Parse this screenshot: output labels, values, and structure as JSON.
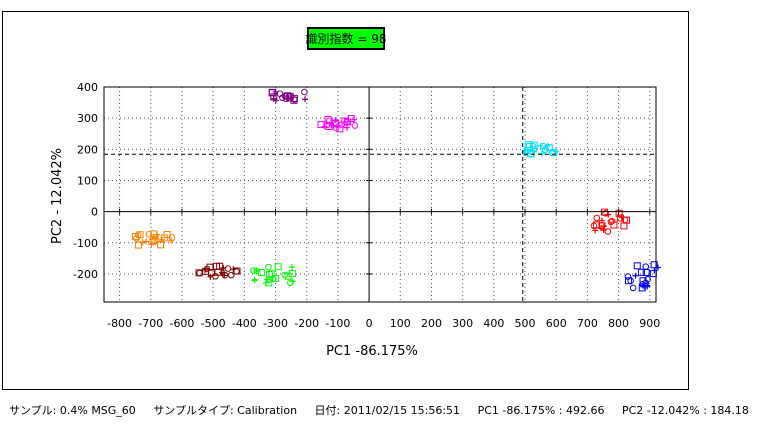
{
  "badge": {
    "text": "識別指数 = 98",
    "color": "#00ff00"
  },
  "footer": {
    "sample": "サンプル: 0.4% MSG_60",
    "sample_type": "サンプルタイプ: Calibration",
    "date": "日付: 2011/02/15 15:56:51",
    "pc1": "PC1 -86.175% : 492.66",
    "pc2": "PC2 -12.042% : 184.18"
  },
  "chart_data": {
    "type": "scatter",
    "xlabel": "PC1 -86.175%",
    "ylabel": "PC2 - 12.042%",
    "xlim": [
      -850,
      920
    ],
    "ylim": [
      -290,
      400
    ],
    "x_ticks": [
      -800,
      -700,
      -600,
      -500,
      -400,
      -300,
      -200,
      -100,
      0,
      100,
      200,
      300,
      400,
      500,
      600,
      700,
      800,
      900
    ],
    "y_ticks": [
      -200,
      -100,
      0,
      100,
      200,
      300,
      400
    ],
    "x_tick_labels": [
      "-800",
      "-700",
      "-600",
      "-500",
      "-400",
      "-300",
      "-200",
      "-100",
      "0",
      "100",
      "200",
      "300",
      "400",
      "500",
      "600",
      "700",
      "800",
      "900"
    ],
    "y_tick_labels": [
      "-200",
      "-100",
      "0",
      "100",
      "200",
      "300",
      "400"
    ],
    "grid": "dotted",
    "crosshair": {
      "x": 492.66,
      "y": 184.18
    },
    "clusters": [
      {
        "color": "#800080",
        "x_range": [
          -320,
          -200
        ],
        "y_range": [
          355,
          385
        ]
      },
      {
        "color": "#ff00ff",
        "x_range": [
          -160,
          -40
        ],
        "y_range": [
          265,
          300
        ]
      },
      {
        "color": "#00e0ff",
        "x_range": [
          500,
          610
        ],
        "y_range": [
          185,
          215
        ]
      },
      {
        "color": "#ff8000",
        "x_range": [
          -750,
          -620
        ],
        "y_range": [
          -110,
          -70
        ]
      },
      {
        "color": "#800000",
        "x_range": [
          -550,
          -420
        ],
        "y_range": [
          -210,
          -175
        ]
      },
      {
        "color": "#00ff00",
        "x_range": [
          -380,
          -230
        ],
        "y_range": [
          -230,
          -175
        ]
      },
      {
        "color": "#ff0000",
        "x_range": [
          715,
          830
        ],
        "y_range": [
          -70,
          0
        ]
      },
      {
        "color": "#0000ff",
        "x_range": [
          830,
          930
        ],
        "y_range": [
          -245,
          -170
        ]
      }
    ]
  }
}
